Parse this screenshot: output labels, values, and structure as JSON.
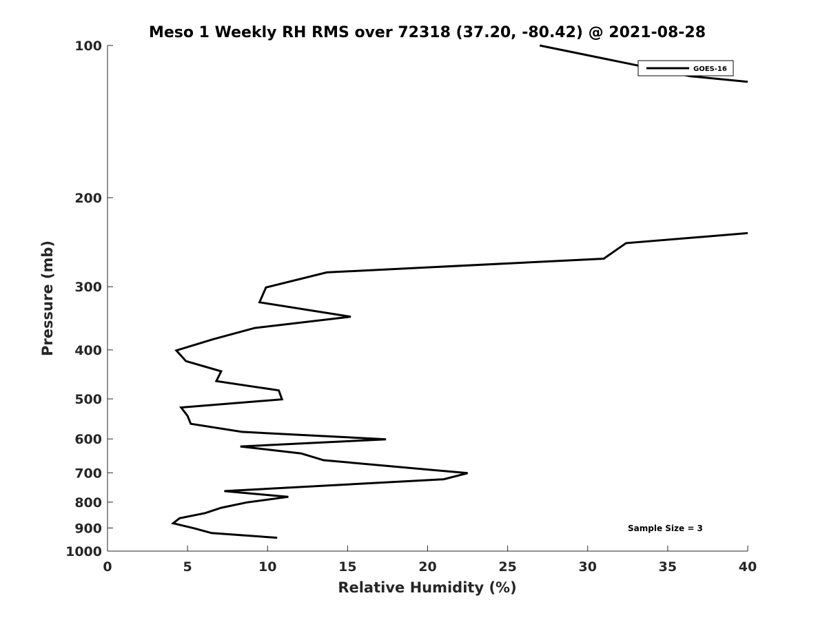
{
  "chart_data": {
    "type": "line",
    "title": "Meso 1 Weekly RH RMS over 72318 (37.20, -80.42) @ 2021-08-28",
    "xlabel": "Relative Humidity (%)",
    "ylabel": "Pressure (mb)",
    "xlim": [
      0,
      40
    ],
    "ylim": [
      100,
      1000
    ],
    "y_scale": "log",
    "y_reversed": true,
    "x_ticks": [
      0,
      5,
      10,
      15,
      20,
      25,
      30,
      35,
      40
    ],
    "y_ticks": [
      100,
      200,
      300,
      400,
      500,
      600,
      700,
      800,
      900,
      1000
    ],
    "grid": false,
    "legend_location": "top-right",
    "color": "#000000",
    "annotation": "Sample Size = 3",
    "series": [
      {
        "name": "GOES-16",
        "points": [
          [
            27.0,
            100
          ],
          [
            36.4,
            115
          ],
          [
            40.0,
            118
          ]
        ]
      },
      {
        "name": "GOES-16",
        "points": [
          [
            40.0,
            235
          ],
          [
            32.4,
            246
          ],
          [
            31.0,
            264
          ],
          [
            13.7,
            281
          ],
          [
            9.9,
            301
          ],
          [
            9.5,
            322
          ],
          [
            15.2,
            344
          ],
          [
            9.2,
            362
          ],
          [
            6.6,
            381
          ],
          [
            4.3,
            401
          ],
          [
            4.9,
            421
          ],
          [
            7.1,
            441
          ],
          [
            6.8,
            461
          ],
          [
            10.7,
            481
          ],
          [
            10.9,
            501
          ],
          [
            4.6,
            520
          ],
          [
            5.0,
            540
          ],
          [
            5.2,
            560
          ],
          [
            8.4,
            581
          ],
          [
            17.4,
            601
          ],
          [
            8.3,
            621
          ],
          [
            12.1,
            641
          ],
          [
            13.5,
            661
          ],
          [
            22.5,
            701
          ],
          [
            21.0,
            721
          ],
          [
            7.3,
            761
          ],
          [
            11.3,
            781
          ],
          [
            8.7,
            801
          ],
          [
            7.1,
            821
          ],
          [
            6.1,
            841
          ],
          [
            4.5,
            861
          ],
          [
            4.1,
            881
          ],
          [
            5.4,
            901
          ],
          [
            6.5,
            921
          ],
          [
            10.6,
            941
          ]
        ]
      }
    ]
  }
}
